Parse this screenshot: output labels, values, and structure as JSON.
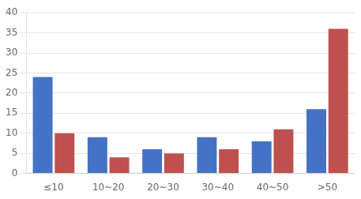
{
  "chart_data": {
    "type": "bar",
    "categories": [
      "≤10",
      "10~20",
      "20~30",
      "30~40",
      "40~50",
      ">50"
    ],
    "series": [
      {
        "color": "#4472C4",
        "values": [
          24,
          9,
          6,
          9,
          8,
          16
        ]
      },
      {
        "color": "#C0504D",
        "values": [
          10,
          4,
          5,
          6,
          11,
          36
        ]
      }
    ],
    "ylim": [
      0,
      40
    ],
    "yticks": [
      0,
      5,
      10,
      15,
      20,
      25,
      30,
      35,
      40
    ],
    "grid": true
  }
}
